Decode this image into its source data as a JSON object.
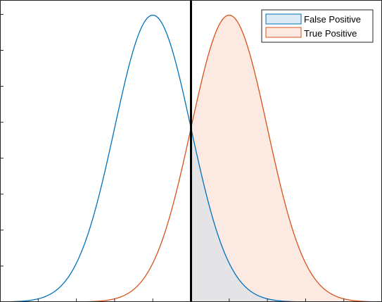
{
  "chart_data": {
    "type": "area",
    "title": "",
    "xlabel": "",
    "ylabel": "",
    "xlim": [
      -5,
      5
    ],
    "ylim": [
      0,
      0.42
    ],
    "grid": false,
    "legend_placement": "top-right",
    "threshold": 0,
    "series": [
      {
        "name": "False Positive",
        "distribution": "normal",
        "mean": -1,
        "sd": 1,
        "line_color": "#0072BD",
        "fill_color": "#dcebf5",
        "fill_region": "x >= threshold"
      },
      {
        "name": "True Positive",
        "distribution": "normal",
        "mean": 1,
        "sd": 1,
        "line_color": "#D95319",
        "fill_color": "#fbe9e2",
        "fill_region": "x >= threshold"
      }
    ],
    "overlap_fill_color": "#e4e3e5",
    "threshold_line_color": "#000000"
  },
  "legend": {
    "false_positive_label": "False Positive",
    "true_positive_label": "True Positive"
  }
}
